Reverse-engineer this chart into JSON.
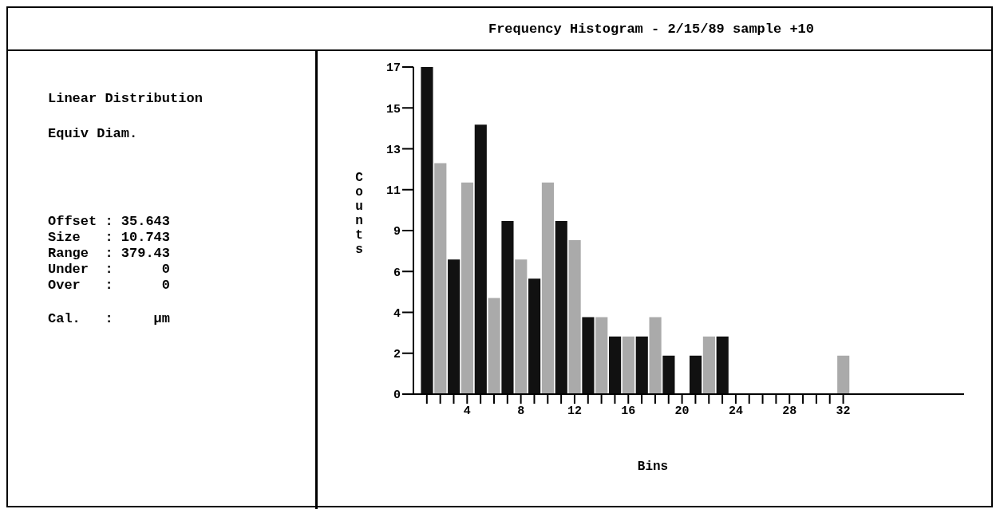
{
  "chart_data": {
    "type": "histogram",
    "title": "Frequency Histogram - 2/15/89 sample +10",
    "xlabel": "Bins",
    "ylabel": "Counts",
    "bins": [
      0.5,
      1.5,
      2.5,
      3.5,
      4.5,
      5.5,
      6.5,
      7.5,
      8.5,
      9.5,
      10.5,
      11.5,
      12.5,
      13.5,
      14.5,
      15.5,
      16.5,
      17.5,
      18.5,
      19.5,
      20.5,
      21.5,
      22.5,
      23.5,
      24.5,
      25.5,
      26.5,
      27.5,
      28.5,
      29.5,
      30.5,
      31.5,
      32.5
    ],
    "values": [
      17,
      12,
      7,
      11,
      14,
      5,
      9,
      7,
      6,
      11,
      9,
      8,
      4,
      4,
      3,
      3,
      3,
      4,
      2,
      0,
      2,
      3,
      3,
      0,
      0,
      0,
      0,
      0,
      0,
      0,
      0,
      2
    ],
    "colors": [
      "#111111",
      "#aaaaaa",
      "#111111",
      "#aaaaaa",
      "#111111",
      "#aaaaaa",
      "#111111",
      "#aaaaaa",
      "#111111",
      "#aaaaaa",
      "#111111",
      "#aaaaaa",
      "#111111",
      "#aaaaaa",
      "#111111",
      "#aaaaaa",
      "#111111",
      "#aaaaaa",
      "#111111",
      "#aaaaaa",
      "#111111",
      "#aaaaaa",
      "#111111",
      "#aaaaaa",
      "#111111",
      "#aaaaaa",
      "#111111",
      "#aaaaaa",
      "#111111",
      "#aaaaaa",
      "#111111",
      "#aaaaaa"
    ],
    "xlim": [
      0,
      41
    ],
    "xticks": [
      {
        "value": 1,
        "label": null
      },
      {
        "value": 2,
        "label": null
      },
      {
        "value": 3,
        "label": null
      },
      4,
      {
        "value": 5,
        "label": null
      },
      {
        "value": 6,
        "label": null
      },
      {
        "value": 7,
        "label": null
      },
      8,
      {
        "value": 9,
        "label": null
      },
      {
        "value": 10,
        "label": null
      },
      {
        "value": 11,
        "label": null
      },
      12,
      {
        "value": 13,
        "label": null
      },
      {
        "value": 14,
        "label": null
      },
      {
        "value": 15,
        "label": null
      },
      16,
      {
        "value": 17,
        "label": null
      },
      {
        "value": 18,
        "label": null
      },
      {
        "value": 19,
        "label": null
      },
      20,
      {
        "value": 21,
        "label": null
      },
      {
        "value": 22,
        "label": null
      },
      {
        "value": 23,
        "label": null
      },
      24,
      {
        "value": 25,
        "label": null
      },
      {
        "value": 26,
        "label": null
      },
      {
        "value": 27,
        "label": null
      },
      28,
      {
        "value": 29,
        "label": null
      },
      {
        "value": 30,
        "label": null
      },
      {
        "value": 31,
        "label": null
      },
      32
    ],
    "ylim": [
      0,
      17
    ],
    "yticks": [
      0,
      {
        "value": 2.125,
        "label": "2"
      },
      {
        "value": 4.25,
        "label": "4"
      },
      {
        "value": 6.375,
        "label": "6"
      },
      {
        "value": 8.5,
        "label": "9"
      },
      {
        "value": 10.625,
        "label": "11"
      },
      {
        "value": 12.75,
        "label": "13"
      },
      {
        "value": 14.875,
        "label": "15"
      },
      17
    ],
    "grid": false,
    "legend": false,
    "annotations": [
      "Linear Distribution",
      "Equiv Diam.",
      "Offset : 35.643",
      "Size   : 10.743",
      "Range  : 379.43",
      "Under  :      0",
      "Over   :      0",
      "Cal.   :     µm"
    ]
  }
}
